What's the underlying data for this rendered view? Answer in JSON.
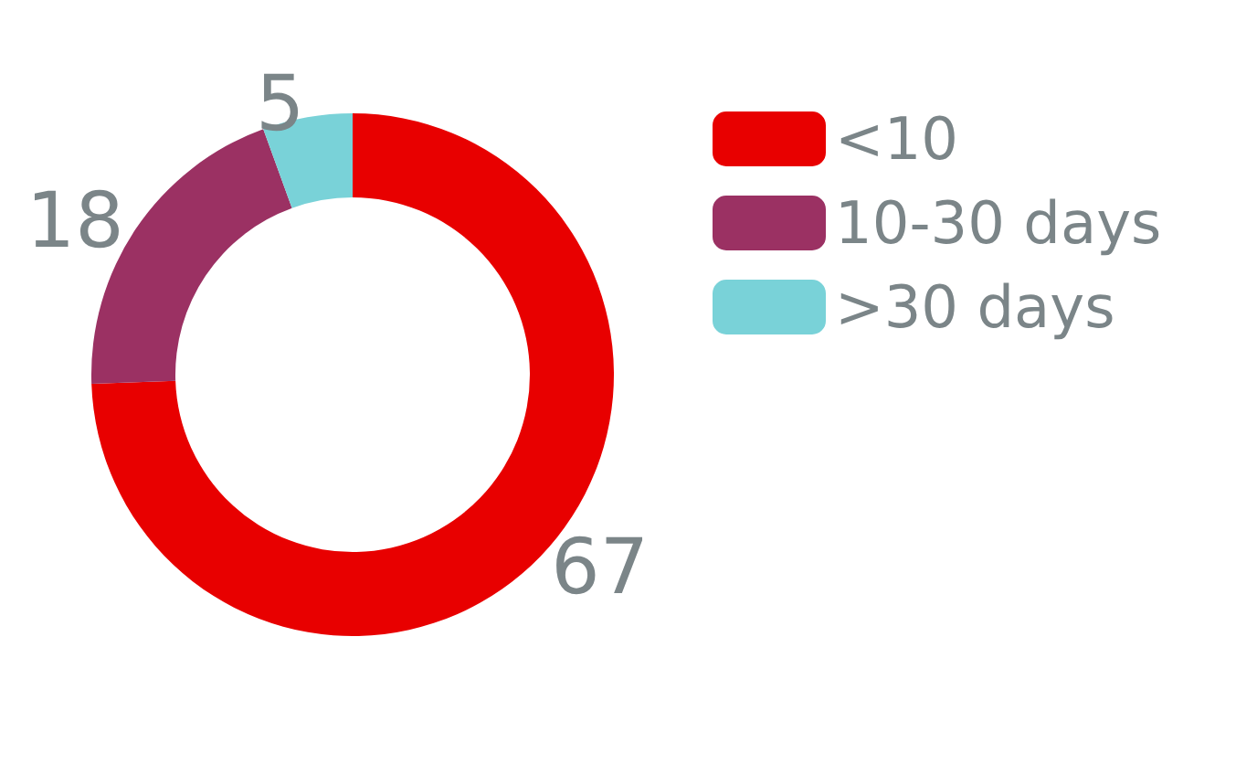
{
  "chart_data": {
    "type": "donut",
    "categories": [
      "<10",
      "10-30 days",
      ">30 days"
    ],
    "values": [
      67,
      18,
      5
    ],
    "colors": [
      "#e80000",
      "#9b3163",
      "#79d2d8"
    ],
    "data_labels": true,
    "legend": "right"
  }
}
